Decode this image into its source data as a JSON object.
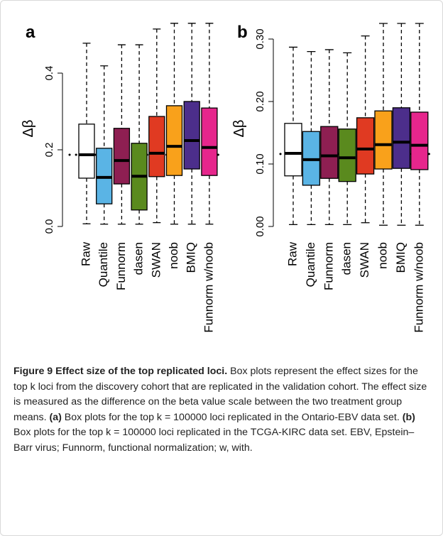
{
  "chart_data": [
    {
      "type": "box",
      "panel_label": "a",
      "ylabel": "Δβ",
      "categories": [
        "Raw",
        "Quantile",
        "Funnorm",
        "dasen",
        "SWAN",
        "noob",
        "BMIQ",
        "Funnorm w/noob"
      ],
      "colors": [
        "#ffffff",
        "#5ab4e5",
        "#8e1f52",
        "#5a8a1e",
        "#e03a22",
        "#f9a11b",
        "#4c2e8b",
        "#e6268c"
      ],
      "boxes": [
        {
          "whisker_low": 0.007,
          "q1": 0.126,
          "median": 0.187,
          "q3": 0.267,
          "whisker_high": 0.478
        },
        {
          "whisker_low": 0.006,
          "q1": 0.059,
          "median": 0.128,
          "q3": 0.204,
          "whisker_high": 0.419
        },
        {
          "whisker_low": 0.006,
          "q1": 0.111,
          "median": 0.172,
          "q3": 0.256,
          "whisker_high": 0.474
        },
        {
          "whisker_low": 0.006,
          "q1": 0.043,
          "median": 0.131,
          "q3": 0.217,
          "whisker_high": 0.474
        },
        {
          "whisker_low": 0.01,
          "q1": 0.13,
          "median": 0.191,
          "q3": 0.287,
          "whisker_high": 0.515
        },
        {
          "whisker_low": 0.006,
          "q1": 0.133,
          "median": 0.209,
          "q3": 0.315,
          "whisker_high": 0.53
        },
        {
          "whisker_low": 0.006,
          "q1": 0.15,
          "median": 0.224,
          "q3": 0.326,
          "whisker_high": 0.53
        },
        {
          "whisker_low": 0.006,
          "q1": 0.133,
          "median": 0.206,
          "q3": 0.309,
          "whisker_high": 0.53
        }
      ],
      "reference_line": 0.187,
      "ylim": [
        -0.02,
        0.53
      ],
      "yticks": [
        {
          "value": 0,
          "label": "0.0"
        },
        0.2,
        0.4
      ]
    },
    {
      "type": "box",
      "panel_label": "b",
      "ylabel": "Δβ",
      "categories": [
        "Raw",
        "Quantile",
        "Funnorm",
        "dasen",
        "SWAN",
        "noob",
        "BMIQ",
        "Funnorm w/noob"
      ],
      "colors": [
        "#ffffff",
        "#5ab4e5",
        "#8e1f52",
        "#5a8a1e",
        "#e03a22",
        "#f9a11b",
        "#4c2e8b",
        "#e6268c"
      ],
      "boxes": [
        {
          "whisker_low": 0.003,
          "q1": 0.081,
          "median": 0.117,
          "q3": 0.165,
          "whisker_high": 0.287
        },
        {
          "whisker_low": 0.003,
          "q1": 0.066,
          "median": 0.107,
          "q3": 0.152,
          "whisker_high": 0.28
        },
        {
          "whisker_low": 0.003,
          "q1": 0.077,
          "median": 0.113,
          "q3": 0.16,
          "whisker_high": 0.283
        },
        {
          "whisker_low": 0.003,
          "q1": 0.072,
          "median": 0.11,
          "q3": 0.156,
          "whisker_high": 0.278
        },
        {
          "whisker_low": 0.006,
          "q1": 0.084,
          "median": 0.124,
          "q3": 0.174,
          "whisker_high": 0.305
        },
        {
          "whisker_low": 0.002,
          "q1": 0.092,
          "median": 0.131,
          "q3": 0.185,
          "whisker_high": 0.325
        },
        {
          "whisker_low": 0.002,
          "q1": 0.093,
          "median": 0.135,
          "q3": 0.19,
          "whisker_high": 0.325
        },
        {
          "whisker_low": 0.002,
          "q1": 0.091,
          "median": 0.13,
          "q3": 0.183,
          "whisker_high": 0.325
        }
      ],
      "reference_line": 0.116,
      "ylim": [
        -0.01,
        0.325
      ],
      "yticks": [
        {
          "value": 0,
          "label": "0.00"
        },
        {
          "value": 0.1,
          "label": "0.10"
        },
        {
          "value": 0.2,
          "label": "0.20"
        },
        {
          "value": 0.3,
          "label": "0.30"
        }
      ]
    }
  ],
  "caption": {
    "label": "Figure 9",
    "title": "Effect size of the top replicated loci.",
    "text_1": "Box plots represent the effect sizes for the top k loci from the discovery cohort that are replicated in the validation cohort. The effect size is measured as the difference on the beta value scale between the two treatment group means.",
    "part_a": "(a)",
    "text_2": "Box plots for the top k = 100000 loci replicated in the Ontario-EBV data set.",
    "part_b": "(b)",
    "text_3": "Box plots for the top k = 100000 loci replicated in the TCGA-KIRC data set. EBV, Epstein–Barr virus; Funnorm, functional normalization; w, with."
  }
}
